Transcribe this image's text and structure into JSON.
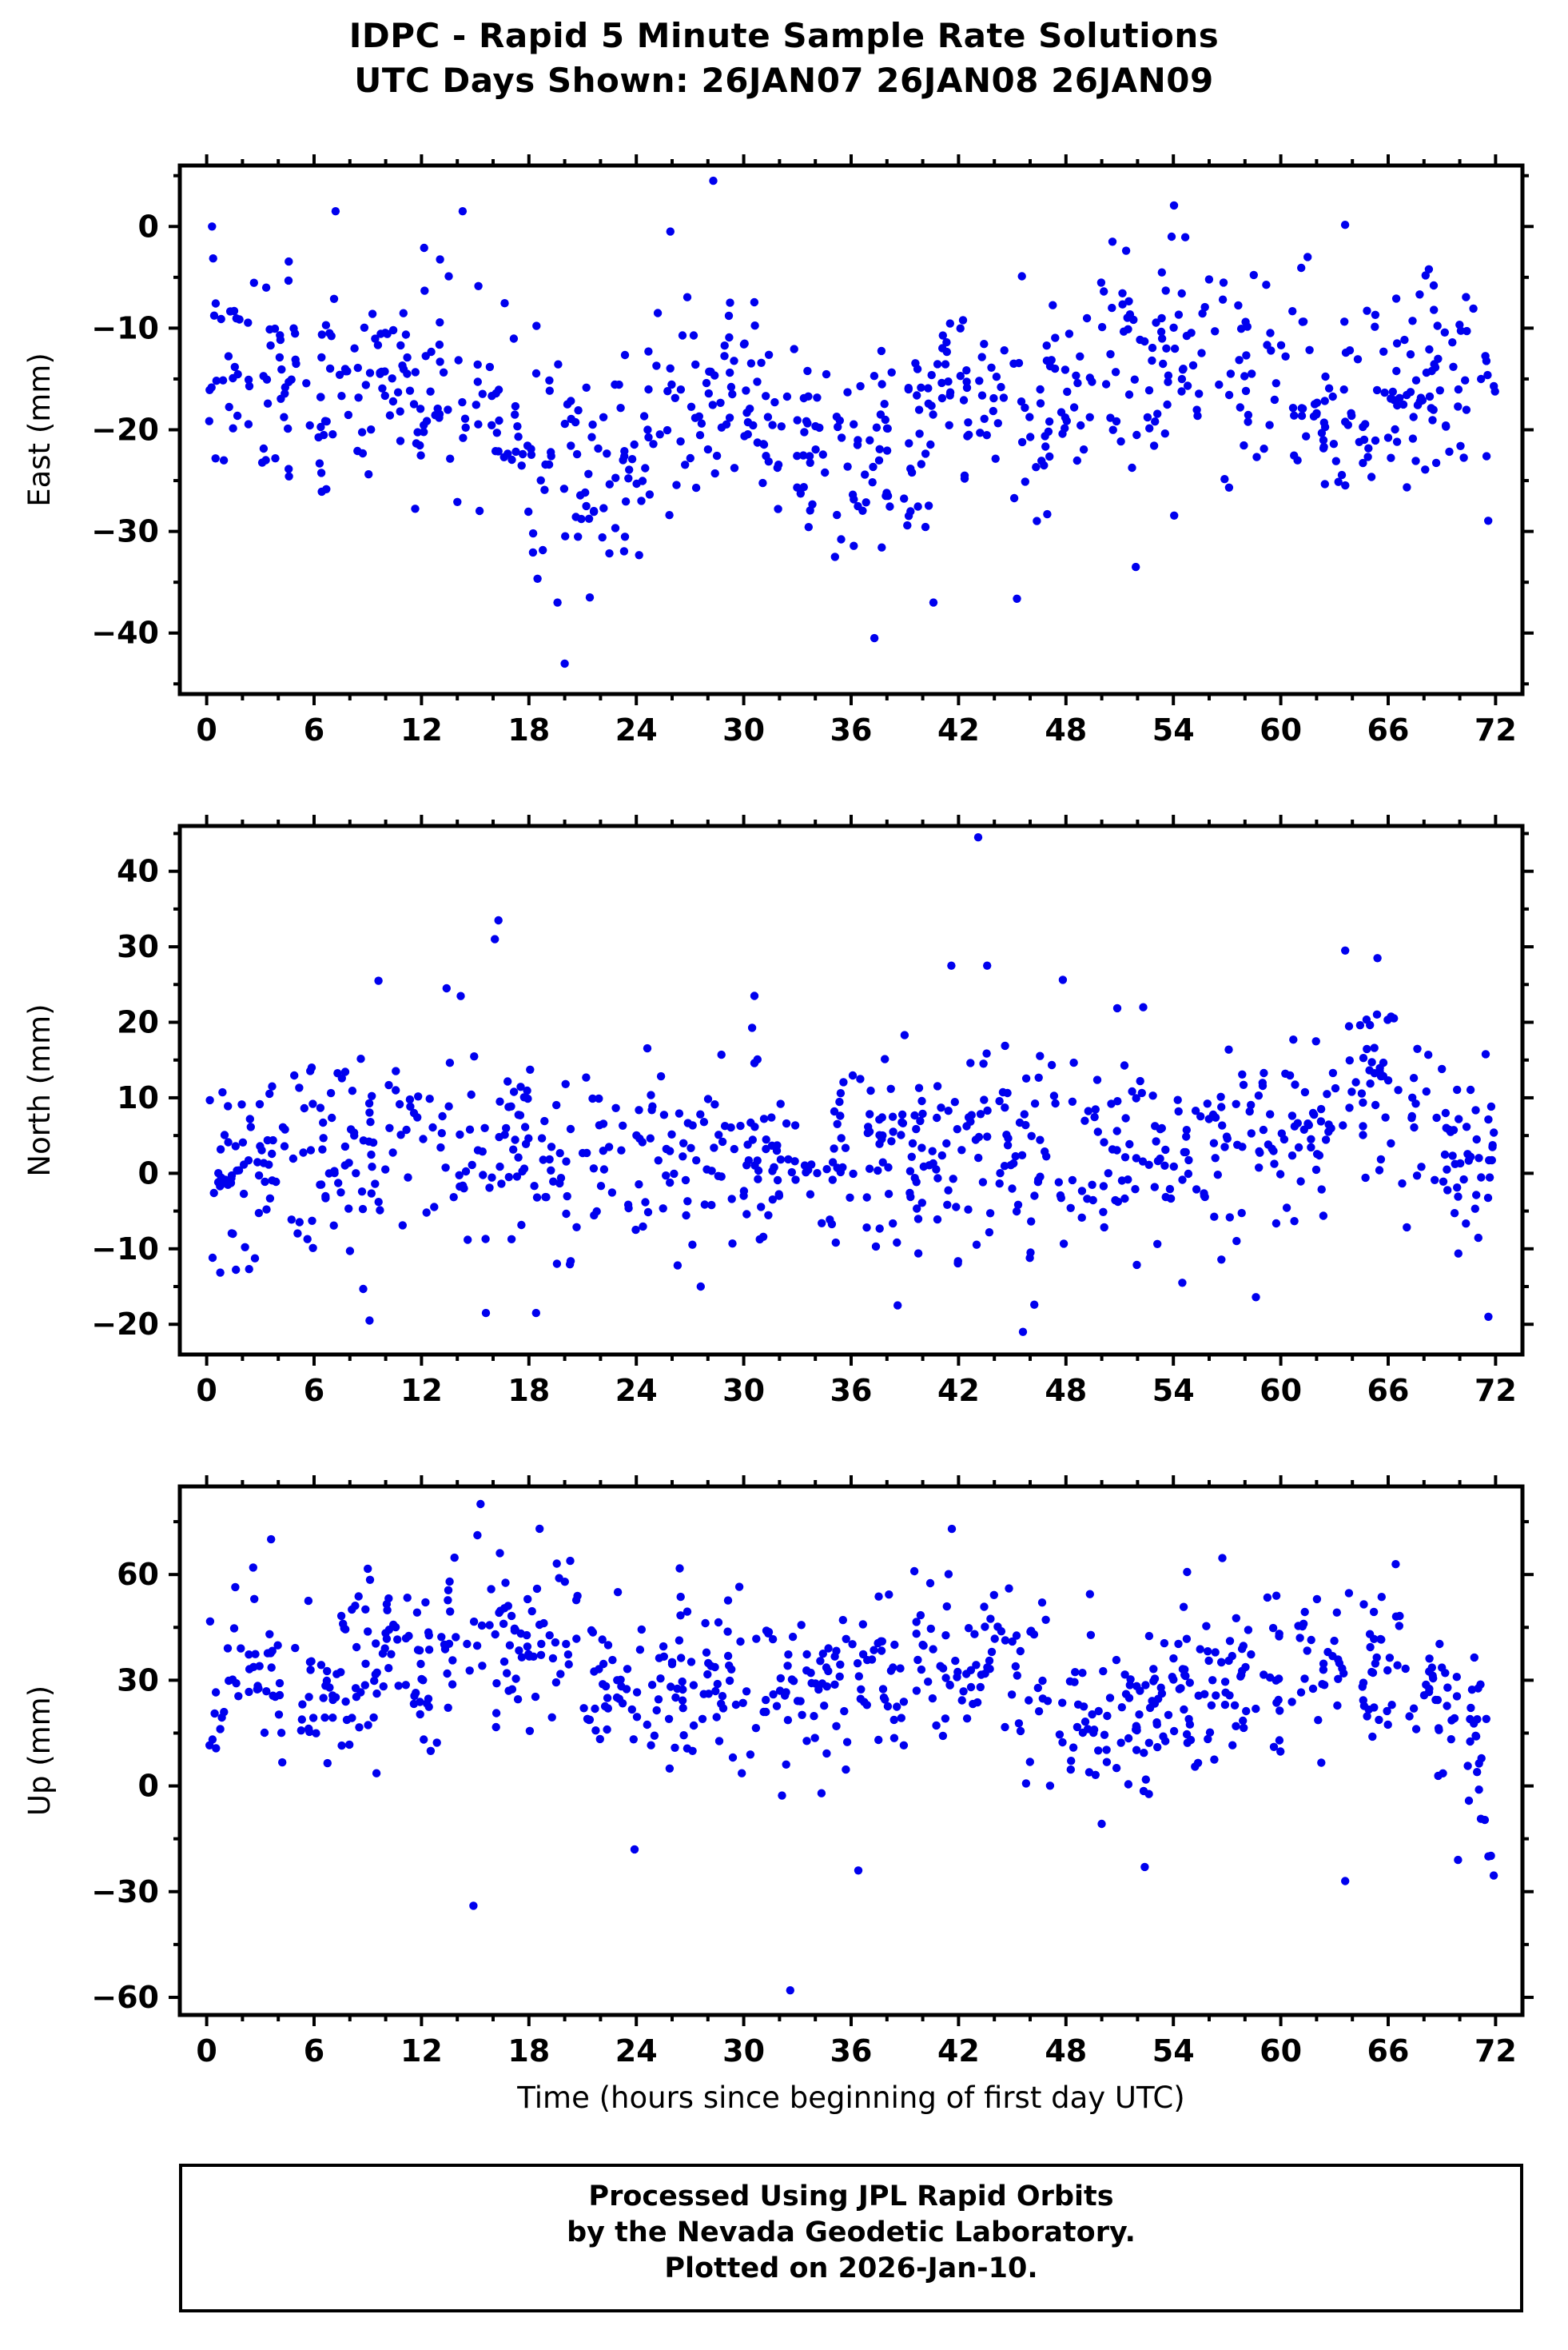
{
  "title": {
    "line1": "IDPC - Rapid 5 Minute Sample Rate Solutions",
    "line2": "UTC Days Shown:  26JAN07 26JAN08 26JAN09"
  },
  "footer": {
    "line1": "Processed Using JPL Rapid Orbits",
    "line2": "by the Nevada Geodetic Laboratory.",
    "line3": "Plotted on 2026-Jan-10."
  },
  "chart_data": {
    "type": "scatter",
    "title": "IDPC - Rapid 5 Minute Sample Rate Solutions",
    "subtitle": "UTC Days Shown:  26JAN07 26JAN08 26JAN09",
    "point_color": "#0000ee",
    "grid": false,
    "legend": "none",
    "x": {
      "label": "Time (hours since beginning of first day UTC)",
      "lim": [
        -1.5,
        73.5
      ],
      "ticks": [
        0,
        6,
        12,
        18,
        24,
        30,
        36,
        42,
        48,
        54,
        60,
        66,
        72
      ],
      "minor_step": 2
    },
    "panels": [
      {
        "ylabel": "East (mm)",
        "ylim": [
          -46,
          6
        ],
        "yticks": [
          0,
          -10,
          -20,
          -30,
          -40
        ],
        "y_minor_step": 5,
        "seed": 11,
        "count": 750,
        "std": 5.2,
        "mean_profile": [
          [
            0,
            -16
          ],
          [
            4,
            -15
          ],
          [
            8,
            -15
          ],
          [
            12,
            -16
          ],
          [
            15,
            -17
          ],
          [
            18,
            -21
          ],
          [
            20,
            -24
          ],
          [
            22,
            -25
          ],
          [
            24,
            -22
          ],
          [
            26,
            -18
          ],
          [
            28,
            -16
          ],
          [
            30,
            -17
          ],
          [
            33,
            -21
          ],
          [
            36,
            -23
          ],
          [
            38,
            -22
          ],
          [
            40,
            -20
          ],
          [
            42,
            -18
          ],
          [
            44,
            -17
          ],
          [
            46,
            -17
          ],
          [
            48,
            -16
          ],
          [
            50,
            -15
          ],
          [
            52,
            -14
          ],
          [
            54,
            -13
          ],
          [
            56,
            -13
          ],
          [
            58,
            -14
          ],
          [
            60,
            -15
          ],
          [
            62,
            -17
          ],
          [
            64,
            -18
          ],
          [
            66,
            -18
          ],
          [
            68,
            -16
          ],
          [
            70,
            -15
          ],
          [
            72,
            -16
          ]
        ],
        "outliers": [
          [
            28.3,
            4.5
          ],
          [
            20.0,
            -43
          ],
          [
            37.3,
            -40.5
          ],
          [
            19.6,
            -37
          ],
          [
            21.4,
            -36.5
          ],
          [
            40.6,
            -37
          ],
          [
            51.9,
            -33.5
          ],
          [
            35.1,
            -32.5
          ],
          [
            14.3,
            1.5
          ],
          [
            7.2,
            1.5
          ],
          [
            0.3,
            0
          ],
          [
            25.9,
            -0.5
          ],
          [
            50.6,
            -1.5
          ],
          [
            53.9,
            -1
          ],
          [
            61.5,
            -3
          ]
        ]
      },
      {
        "ylabel": "North (mm)",
        "ylim": [
          -24,
          46
        ],
        "yticks": [
          -20,
          -10,
          0,
          10,
          20,
          30,
          40
        ],
        "y_minor_step": 5,
        "seed": 22,
        "count": 750,
        "std": 6.2,
        "mean_profile": [
          [
            0,
            -1
          ],
          [
            2,
            1
          ],
          [
            4,
            2
          ],
          [
            6,
            3
          ],
          [
            8,
            4
          ],
          [
            10,
            4
          ],
          [
            12,
            4
          ],
          [
            14,
            3
          ],
          [
            16,
            4
          ],
          [
            18,
            1
          ],
          [
            20,
            0
          ],
          [
            22,
            1
          ],
          [
            24,
            2
          ],
          [
            26,
            3
          ],
          [
            28,
            3
          ],
          [
            30,
            3
          ],
          [
            32,
            2
          ],
          [
            34,
            2
          ],
          [
            36,
            2
          ],
          [
            38,
            3
          ],
          [
            40,
            4
          ],
          [
            42,
            4
          ],
          [
            44,
            3
          ],
          [
            46,
            3
          ],
          [
            48,
            4
          ],
          [
            50,
            4
          ],
          [
            52,
            4
          ],
          [
            54,
            3
          ],
          [
            56,
            3
          ],
          [
            58,
            4
          ],
          [
            60,
            5
          ],
          [
            62,
            7
          ],
          [
            64,
            10
          ],
          [
            65,
            14
          ],
          [
            66,
            12
          ],
          [
            68,
            5
          ],
          [
            70,
            3
          ],
          [
            72,
            1
          ]
        ],
        "outliers": [
          [
            43.1,
            44.5
          ],
          [
            16.3,
            33.5
          ],
          [
            16.1,
            31
          ],
          [
            63.6,
            29.5
          ],
          [
            65.4,
            28.5
          ],
          [
            41.6,
            27.5
          ],
          [
            43.6,
            27.5
          ],
          [
            9.6,
            25.5
          ],
          [
            13.4,
            24.5
          ],
          [
            30.6,
            23.5
          ],
          [
            45.6,
            -21
          ],
          [
            71.6,
            -19
          ],
          [
            9.1,
            -19.5
          ],
          [
            15.6,
            -18.5
          ],
          [
            18.4,
            -18.5
          ],
          [
            38.6,
            -17.5
          ],
          [
            27.6,
            -15
          ],
          [
            54.5,
            -14.5
          ]
        ]
      },
      {
        "ylabel": "Up (mm)",
        "ylim": [
          -65,
          85
        ],
        "yticks": [
          -60,
          -30,
          0,
          30,
          60
        ],
        "y_minor_step": 15,
        "seed": 33,
        "count": 750,
        "std": 12,
        "mean_profile": [
          [
            0,
            25
          ],
          [
            2,
            38
          ],
          [
            4,
            30
          ],
          [
            6,
            22
          ],
          [
            8,
            30
          ],
          [
            10,
            38
          ],
          [
            12,
            38
          ],
          [
            14,
            42
          ],
          [
            16,
            45
          ],
          [
            18,
            42
          ],
          [
            20,
            38
          ],
          [
            22,
            32
          ],
          [
            24,
            22
          ],
          [
            26,
            28
          ],
          [
            28,
            30
          ],
          [
            30,
            27
          ],
          [
            32,
            24
          ],
          [
            34,
            25
          ],
          [
            36,
            30
          ],
          [
            38,
            33
          ],
          [
            40,
            34
          ],
          [
            42,
            35
          ],
          [
            44,
            40
          ],
          [
            46,
            30
          ],
          [
            48,
            18
          ],
          [
            50,
            15
          ],
          [
            52,
            18
          ],
          [
            54,
            26
          ],
          [
            56,
            28
          ],
          [
            58,
            30
          ],
          [
            60,
            30
          ],
          [
            62,
            28
          ],
          [
            64,
            30
          ],
          [
            66,
            33
          ],
          [
            68,
            28
          ],
          [
            70,
            18
          ],
          [
            72,
            5
          ]
        ],
        "outliers": [
          [
            15.3,
            80
          ],
          [
            18.6,
            73
          ],
          [
            3.6,
            70
          ],
          [
            2.6,
            62
          ],
          [
            14.9,
            -34
          ],
          [
            32.6,
            -58
          ],
          [
            63.6,
            -27
          ],
          [
            69.9,
            -21
          ],
          [
            71.6,
            -20
          ],
          [
            23.9,
            -18
          ],
          [
            36.4,
            -24
          ],
          [
            52.4,
            -23
          ]
        ]
      }
    ]
  }
}
